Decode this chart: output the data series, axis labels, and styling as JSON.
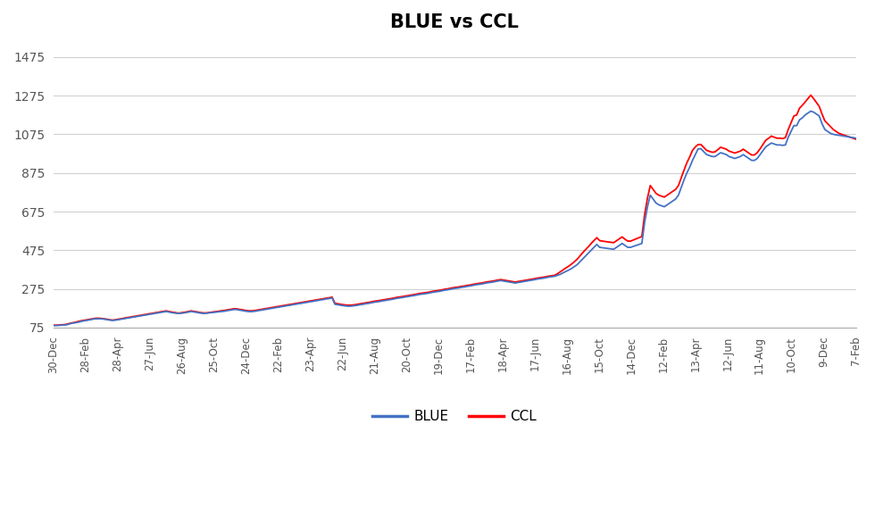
{
  "title": "BLUE vs CCL",
  "title_fontsize": 15,
  "title_fontweight": "bold",
  "background_color": "#ffffff",
  "grid_color": "#d0d0d0",
  "blue_color": "#4472c4",
  "ccl_color": "#ff0000",
  "ylim": [
    75,
    1550
  ],
  "yticks": [
    75,
    275,
    475,
    675,
    875,
    1075,
    1275,
    1475
  ],
  "xtick_labels": [
    "30-Dec",
    "28-Feb",
    "28-Apr",
    "27-Jun",
    "26-Aug",
    "25-Oct",
    "24-Dec",
    "22-Feb",
    "23-Apr",
    "22-Jun",
    "21-Aug",
    "20-Oct",
    "19-Dec",
    "17-Feb",
    "18-Apr",
    "17-Jun",
    "16-Aug",
    "15-Oct",
    "14-Dec",
    "12-Feb",
    "13-Apr",
    "12-Jun",
    "11-Aug",
    "10-Oct",
    "9-Dec",
    "7-Feb"
  ],
  "legend_labels": [
    "BLUE",
    "CCL"
  ],
  "blue_data": [
    85,
    85,
    86,
    87,
    88,
    90,
    95,
    98,
    100,
    103,
    107,
    110,
    112,
    115,
    118,
    120,
    120,
    120,
    118,
    116,
    113,
    112,
    113,
    115,
    118,
    120,
    123,
    125,
    128,
    130,
    133,
    135,
    138,
    140,
    143,
    145,
    148,
    150,
    153,
    155,
    158,
    155,
    152,
    150,
    148,
    148,
    150,
    152,
    155,
    158,
    155,
    153,
    150,
    148,
    148,
    150,
    152,
    153,
    155,
    157,
    158,
    160,
    163,
    165,
    168,
    168,
    165,
    163,
    160,
    158,
    157,
    158,
    160,
    163,
    165,
    168,
    170,
    173,
    175,
    178,
    180,
    183,
    185,
    188,
    190,
    193,
    195,
    198,
    200,
    203,
    205,
    208,
    210,
    213,
    215,
    218,
    220,
    223,
    225,
    228,
    195,
    193,
    190,
    188,
    186,
    185,
    186,
    188,
    190,
    193,
    195,
    198,
    200,
    203,
    206,
    208,
    210,
    213,
    215,
    218,
    220,
    223,
    226,
    228,
    230,
    233,
    235,
    238,
    240,
    243,
    246,
    248,
    250,
    252,
    255,
    258,
    260,
    262,
    265,
    268,
    270,
    273,
    276,
    278,
    280,
    283,
    285,
    288,
    290,
    293,
    296,
    298,
    300,
    303,
    306,
    308,
    310,
    313,
    316,
    318,
    315,
    313,
    310,
    308,
    305,
    308,
    310,
    313,
    315,
    318,
    320,
    323,
    326,
    328,
    330,
    333,
    336,
    338,
    340,
    345,
    350,
    358,
    365,
    372,
    380,
    390,
    400,
    415,
    430,
    445,
    460,
    475,
    490,
    505,
    490,
    488,
    486,
    484,
    482,
    480,
    490,
    500,
    510,
    500,
    490,
    490,
    495,
    500,
    505,
    510,
    620,
    700,
    760,
    740,
    720,
    710,
    705,
    700,
    710,
    720,
    730,
    740,
    760,
    800,
    840,
    875,
    905,
    940,
    970,
    1000,
    1000,
    985,
    970,
    965,
    960,
    960,
    970,
    980,
    975,
    970,
    960,
    955,
    950,
    955,
    960,
    970,
    960,
    950,
    940,
    940,
    950,
    970,
    990,
    1010,
    1020,
    1030,
    1025,
    1020,
    1020,
    1018,
    1020,
    1060,
    1090,
    1120,
    1120,
    1150,
    1160,
    1175,
    1185,
    1195,
    1190,
    1180,
    1170,
    1130,
    1100,
    1090,
    1080,
    1075,
    1072,
    1070,
    1068,
    1065,
    1063,
    1060,
    1058,
    1055
  ],
  "ccl_data": [
    87,
    87,
    88,
    89,
    90,
    93,
    97,
    100,
    103,
    107,
    110,
    113,
    115,
    118,
    120,
    123,
    123,
    122,
    120,
    118,
    115,
    113,
    115,
    118,
    120,
    123,
    126,
    128,
    131,
    133,
    136,
    138,
    141,
    143,
    146,
    148,
    151,
    153,
    156,
    158,
    161,
    158,
    155,
    153,
    150,
    150,
    153,
    155,
    158,
    161,
    158,
    156,
    153,
    151,
    150,
    152,
    154,
    156,
    158,
    160,
    162,
    164,
    167,
    169,
    172,
    172,
    169,
    167,
    164,
    162,
    161,
    162,
    164,
    167,
    169,
    172,
    174,
    177,
    179,
    182,
    184,
    187,
    189,
    192,
    194,
    197,
    199,
    202,
    204,
    207,
    209,
    212,
    214,
    217,
    219,
    222,
    224,
    227,
    229,
    232,
    200,
    198,
    195,
    193,
    191,
    190,
    191,
    193,
    195,
    198,
    200,
    203,
    205,
    208,
    211,
    213,
    215,
    218,
    220,
    223,
    225,
    228,
    231,
    233,
    235,
    238,
    240,
    243,
    245,
    248,
    251,
    253,
    255,
    257,
    260,
    263,
    265,
    267,
    270,
    273,
    275,
    278,
    281,
    283,
    285,
    288,
    290,
    293,
    295,
    298,
    301,
    303,
    305,
    308,
    311,
    313,
    315,
    318,
    321,
    323,
    320,
    318,
    315,
    313,
    310,
    313,
    315,
    318,
    320,
    323,
    325,
    328,
    331,
    333,
    335,
    338,
    341,
    343,
    345,
    353,
    363,
    373,
    383,
    392,
    403,
    415,
    428,
    445,
    462,
    478,
    493,
    510,
    525,
    540,
    525,
    522,
    520,
    518,
    516,
    514,
    524,
    534,
    544,
    532,
    522,
    522,
    528,
    534,
    540,
    546,
    660,
    745,
    810,
    790,
    770,
    760,
    755,
    750,
    760,
    770,
    780,
    790,
    810,
    850,
    890,
    928,
    958,
    992,
    1010,
    1022,
    1022,
    1007,
    992,
    987,
    982,
    984,
    996,
    1008,
    1003,
    998,
    988,
    983,
    978,
    983,
    988,
    998,
    988,
    978,
    968,
    968,
    980,
    1000,
    1022,
    1044,
    1054,
    1066,
    1060,
    1055,
    1055,
    1053,
    1058,
    1100,
    1135,
    1170,
    1175,
    1210,
    1225,
    1242,
    1260,
    1278,
    1260,
    1240,
    1220,
    1180,
    1145,
    1130,
    1115,
    1100,
    1090,
    1080,
    1075,
    1070,
    1065,
    1060,
    1055,
    1050
  ]
}
